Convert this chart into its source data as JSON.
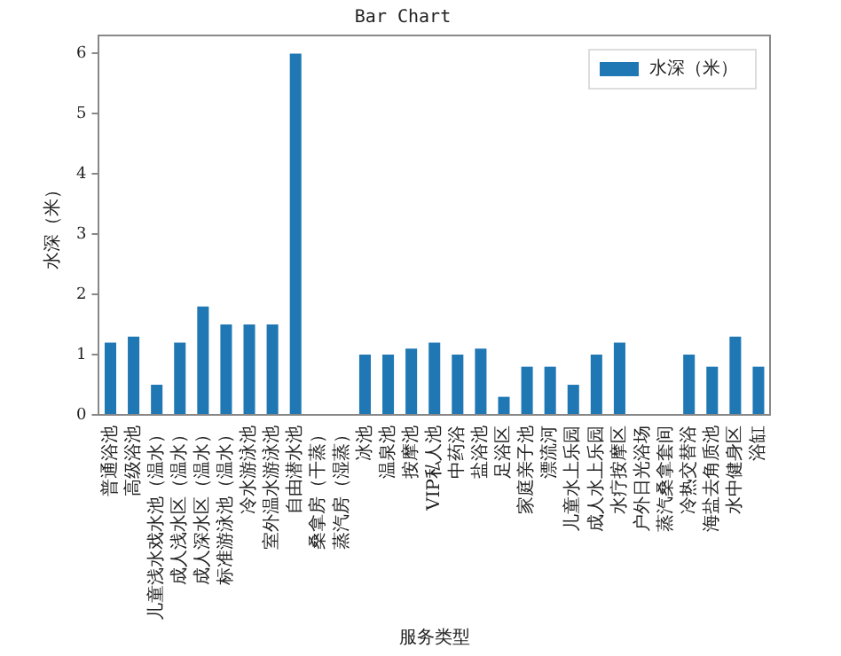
{
  "chart_data": {
    "type": "bar",
    "title": "Bar Chart",
    "xlabel": "服务类型",
    "ylabel": "水深（米）",
    "categories": [
      "普通浴池",
      "高级浴池",
      "儿童浅水戏水池（温水）",
      "成人浅水区（温水）",
      "成人深水区（温水）",
      "标准游泳池（温水）",
      "冷水游泳池",
      "室外温水游泳池",
      "自由潜水池",
      "桑拿房（干蒸）",
      "蒸汽房（湿蒸）",
      "冰池",
      "温泉池",
      "按摩池",
      "VIP私人池",
      "中药浴",
      "盐浴池",
      "足浴区",
      "家庭亲子池",
      "漂流河",
      "儿童水上乐园",
      "成人水上乐园",
      "水疗按摩区",
      "户外日光浴场",
      "蒸汽桑拿套间",
      "冷热交替浴",
      "海盐去角质池",
      "水中健身区",
      "浴缸"
    ],
    "series": [
      {
        "name": "水深（米）",
        "color": "#1f77b4",
        "values": [
          1.2,
          1.3,
          0.5,
          1.2,
          1.8,
          1.5,
          1.5,
          1.5,
          6,
          0,
          0,
          1,
          1,
          1.1,
          1.2,
          1.0,
          1.1,
          0.3,
          0.8,
          0.8,
          0.5,
          1.0,
          1.2,
          0,
          0,
          1.0,
          0.8,
          1.3,
          0.8
        ]
      }
    ],
    "ylim": [
      0,
      6.3
    ],
    "yticks": [
      0,
      1,
      2,
      3,
      4,
      5,
      6
    ],
    "grid": false,
    "legend": "top right"
  }
}
